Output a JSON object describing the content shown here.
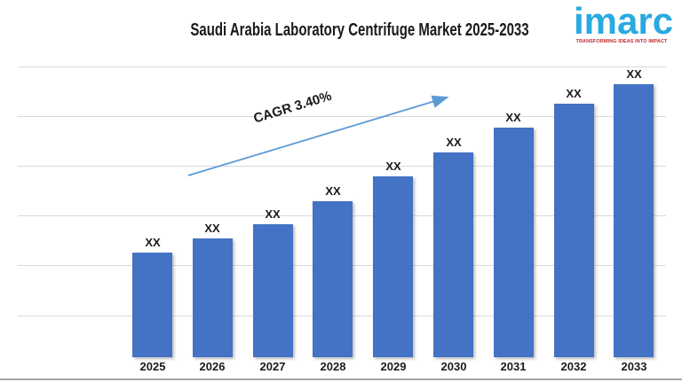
{
  "header": {
    "title": "Saudi Arabia Laboratory Centrifuge Market 2025-2033"
  },
  "logo": {
    "text": "imarc",
    "tagline": "TRANSFORMING IDEAS INTO IMPACT",
    "blue": "#29A9E1",
    "red": "#C1272D"
  },
  "chart_data": {
    "type": "bar",
    "title": "Saudi Arabia Laboratory Centrifuge Market 2025-2033",
    "categories": [
      "2025",
      "2026",
      "2027",
      "2028",
      "2029",
      "2030",
      "2031",
      "2032",
      "2033"
    ],
    "values": [
      "XX",
      "XX",
      "XX",
      "XX",
      "XX",
      "XX",
      "XX",
      "XX",
      "XX"
    ],
    "values_masked": true,
    "relative_heights": [
      0.36,
      0.409,
      0.457,
      0.537,
      0.622,
      0.704,
      0.79,
      0.872,
      0.939
    ],
    "xlabel": "",
    "ylabel": "",
    "y_axis_labels": "none",
    "gridlines": "horizontal",
    "legend_position": "none",
    "annotations": [
      {
        "type": "trend-arrow",
        "text": "CAGR 3.40%"
      }
    ],
    "colors": {
      "bar": "#4472C4",
      "arrow": "#5B9BD5",
      "gridline": "#D9D9D9",
      "bottom_border": "#A6A6A6",
      "text": "#1A1A1A"
    }
  }
}
